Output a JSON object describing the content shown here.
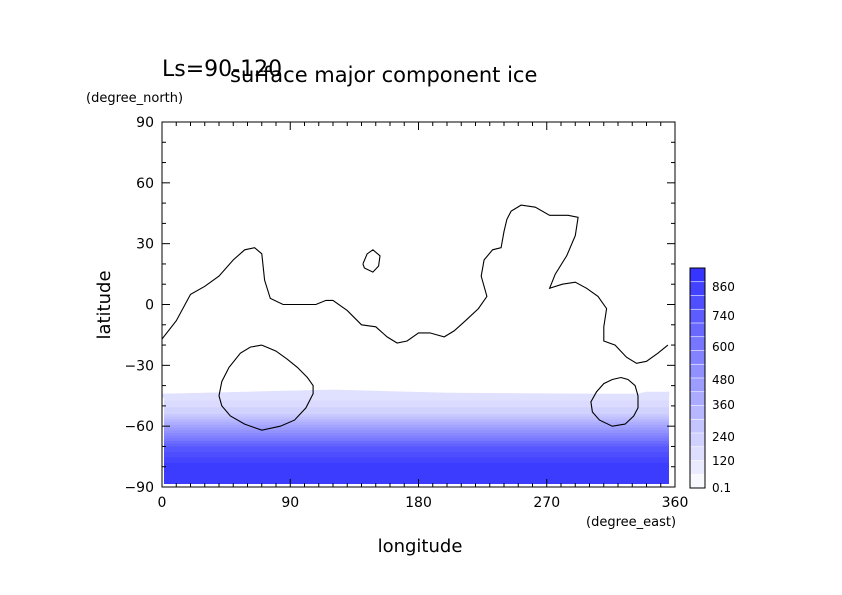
{
  "chart_data": {
    "type": "heatmap",
    "title": "surface major component ice",
    "subtitle": "Ls=90-120",
    "xlabel": "longitude",
    "ylabel": "latitude",
    "xunit": "(degree_east)",
    "yunit": "(degree_north)",
    "xlim": [
      0,
      360
    ],
    "ylim": [
      -90,
      90
    ],
    "xticks": [
      0,
      90,
      180,
      270,
      360
    ],
    "yticks": [
      90,
      60,
      30,
      0,
      -30,
      -60,
      -90
    ],
    "grid": false,
    "colorbar": {
      "labels": [
        "0.1",
        "120",
        "240",
        "360",
        "480",
        "600",
        "740",
        "860"
      ],
      "min_color": "#ffffff",
      "max_color": "#3333ff",
      "levels": 16
    },
    "ice_field": {
      "band_lat_min": -90,
      "edge_lat_west": -44,
      "edge_lat_east": -43,
      "bands": [
        {
          "lat": -44,
          "value": 120
        },
        {
          "lat": -54,
          "value": 240
        },
        {
          "lat": -58,
          "value": 360
        },
        {
          "lat": -62,
          "value": 480
        },
        {
          "lat": -66,
          "value": 600
        },
        {
          "lat": -70,
          "value": 740
        },
        {
          "lat": -78,
          "value": 860
        }
      ]
    },
    "contours": [
      {
        "name": "continent",
        "points": [
          [
            0,
            -17
          ],
          [
            10,
            -8
          ],
          [
            20,
            5
          ],
          [
            30,
            9
          ],
          [
            40,
            14
          ],
          [
            50,
            22
          ],
          [
            58,
            27
          ],
          [
            65,
            28
          ],
          [
            70,
            25
          ],
          [
            72,
            12
          ],
          [
            76,
            3
          ],
          [
            85,
            0
          ],
          [
            100,
            0
          ],
          [
            108,
            0
          ],
          [
            115,
            2
          ],
          [
            120,
            2
          ],
          [
            130,
            -3
          ],
          [
            140,
            -10
          ],
          [
            150,
            -11
          ],
          [
            158,
            -16
          ],
          [
            165,
            -19
          ],
          [
            172,
            -18
          ],
          [
            180,
            -14
          ],
          [
            188,
            -14
          ],
          [
            198,
            -16
          ],
          [
            205,
            -13
          ],
          [
            213,
            -8
          ],
          [
            222,
            -2
          ],
          [
            228,
            4
          ],
          [
            224,
            14
          ],
          [
            226,
            22
          ],
          [
            232,
            27
          ],
          [
            238,
            28
          ],
          [
            240,
            36
          ],
          [
            242,
            42
          ],
          [
            245,
            46
          ],
          [
            252,
            49
          ],
          [
            262,
            48
          ],
          [
            272,
            44
          ],
          [
            285,
            44
          ],
          [
            292,
            43
          ],
          [
            290,
            34
          ],
          [
            284,
            24
          ],
          [
            276,
            15
          ],
          [
            272,
            8
          ],
          [
            281,
            10
          ],
          [
            290,
            11
          ],
          [
            298,
            8
          ],
          [
            306,
            4
          ],
          [
            312,
            -2
          ],
          [
            310,
            -11
          ],
          [
            310,
            -18
          ],
          [
            318,
            -20
          ],
          [
            326,
            -26
          ],
          [
            333,
            -29
          ],
          [
            340,
            -28
          ],
          [
            348,
            -24
          ],
          [
            355,
            -20
          ]
        ]
      },
      {
        "name": "island",
        "points": [
          [
            141,
            20
          ],
          [
            144,
            25
          ],
          [
            148,
            27
          ],
          [
            153,
            24
          ],
          [
            152,
            19
          ],
          [
            148,
            16
          ],
          [
            142,
            18
          ],
          [
            141,
            20
          ]
        ]
      },
      {
        "name": "west-basin",
        "points": [
          [
            70,
            -20
          ],
          [
            80,
            -23
          ],
          [
            88,
            -27
          ],
          [
            95,
            -31
          ],
          [
            102,
            -36
          ],
          [
            106,
            -40
          ],
          [
            106,
            -44
          ],
          [
            101,
            -51
          ],
          [
            93,
            -57
          ],
          [
            83,
            -60
          ],
          [
            70,
            -62
          ],
          [
            58,
            -59
          ],
          [
            48,
            -55
          ],
          [
            42,
            -50
          ],
          [
            40,
            -45
          ],
          [
            42,
            -38
          ],
          [
            47,
            -31
          ],
          [
            55,
            -24
          ],
          [
            62,
            -21
          ],
          [
            70,
            -20
          ]
        ]
      },
      {
        "name": "east-basin",
        "points": [
          [
            322,
            -36
          ],
          [
            327,
            -37
          ],
          [
            332,
            -40
          ],
          [
            334,
            -45
          ],
          [
            334,
            -51
          ],
          [
            331,
            -55
          ],
          [
            325,
            -59
          ],
          [
            316,
            -60
          ],
          [
            307,
            -57
          ],
          [
            302,
            -53
          ],
          [
            301,
            -48
          ],
          [
            305,
            -43
          ],
          [
            310,
            -39
          ],
          [
            316,
            -37
          ],
          [
            322,
            -36
          ]
        ]
      }
    ]
  }
}
